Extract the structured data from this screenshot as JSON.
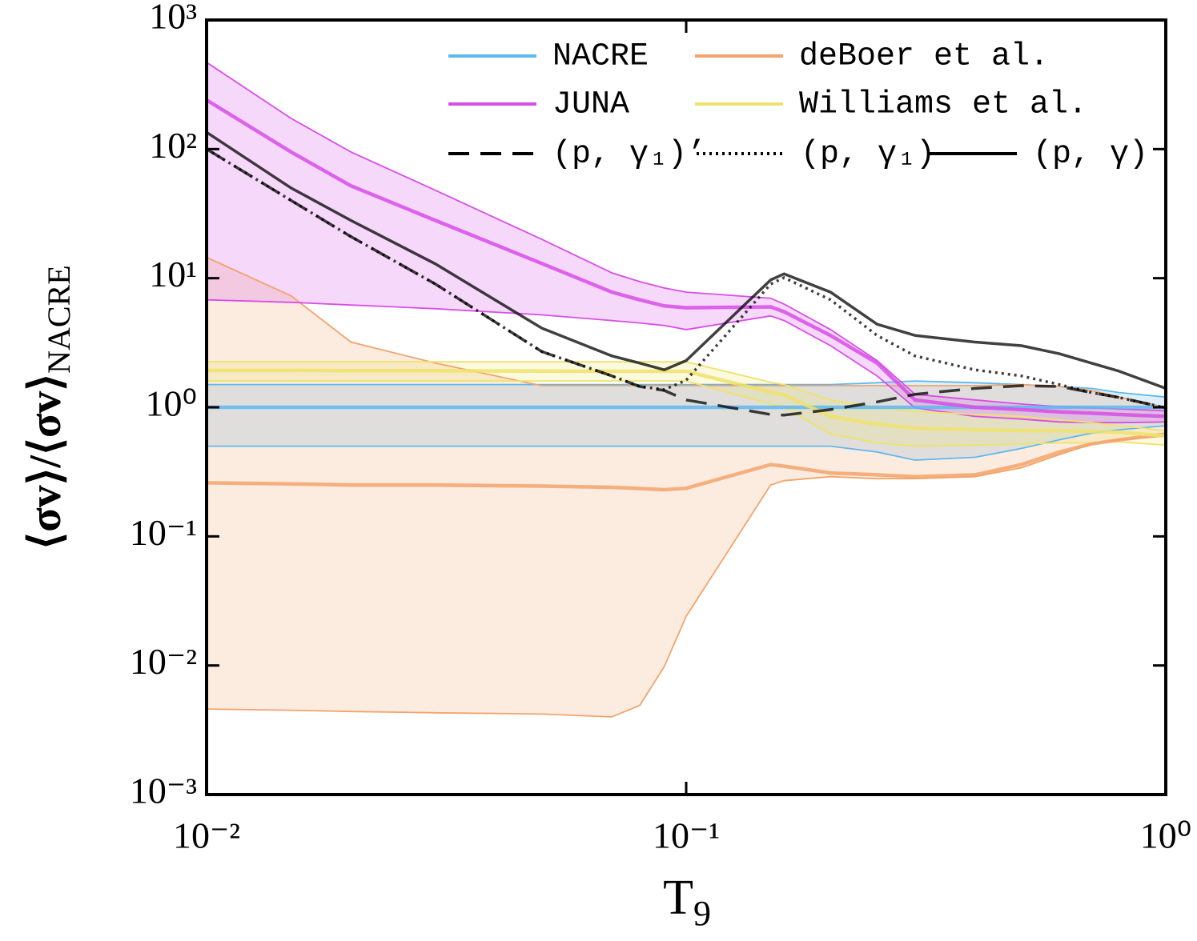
{
  "chart_data": {
    "type": "line",
    "x_label": {
      "text": "T",
      "subscript": "9"
    },
    "y_label": {
      "text": "⟨σv⟩/⟨σv⟩",
      "subscript": "NACRE"
    },
    "log_x": true,
    "log_y": true,
    "xlim": [
      0.01,
      1
    ],
    "ylim": [
      0.001,
      1000
    ],
    "xticks": [
      {
        "value": 0.01,
        "label": "10⁻²"
      },
      {
        "value": 0.1,
        "label": "10⁻¹"
      },
      {
        "value": 1,
        "label": "10⁰"
      }
    ],
    "yticks": [
      {
        "value": 0.001,
        "label": "10⁻³"
      },
      {
        "value": 0.01,
        "label": "10⁻²"
      },
      {
        "value": 0.1,
        "label": "10⁻¹"
      },
      {
        "value": 1,
        "label": "10⁰"
      },
      {
        "value": 10,
        "label": "10¹"
      },
      {
        "value": 100,
        "label": "10²"
      },
      {
        "value": 1000,
        "label": "10³"
      }
    ],
    "legend": "upper right",
    "x": [
      0.01,
      0.015,
      0.02,
      0.03,
      0.05,
      0.07,
      0.08,
      0.09,
      0.1,
      0.15,
      0.16,
      0.2,
      0.25,
      0.3,
      0.4,
      0.5,
      0.6,
      0.7,
      0.8,
      1.0
    ],
    "series": [
      {
        "name": "NACRE",
        "color": "#5fb8ee",
        "style": "solid",
        "values": [
          1,
          1,
          1,
          1,
          1,
          1,
          1,
          1,
          1,
          1,
          1,
          1,
          1,
          1,
          1,
          1,
          1,
          1,
          1,
          1
        ],
        "high": [
          1.5,
          1.5,
          1.5,
          1.5,
          1.5,
          1.5,
          1.5,
          1.5,
          1.5,
          1.5,
          1.5,
          1.5,
          1.55,
          1.6,
          1.55,
          1.5,
          1.45,
          1.4,
          1.3,
          1.2
        ],
        "low": [
          0.5,
          0.5,
          0.5,
          0.5,
          0.5,
          0.5,
          0.5,
          0.5,
          0.5,
          0.5,
          0.5,
          0.5,
          0.45,
          0.39,
          0.41,
          0.48,
          0.56,
          0.63,
          0.67,
          0.72
        ]
      },
      {
        "name": "deBoer et al.",
        "color": "#f2a46c",
        "style": "solid",
        "values": [
          0.26,
          0.255,
          0.25,
          0.25,
          0.245,
          0.24,
          0.235,
          0.23,
          0.236,
          0.36,
          0.35,
          0.31,
          0.3,
          0.29,
          0.3,
          0.36,
          0.45,
          0.52,
          0.56,
          0.62
        ],
        "high": [
          14.5,
          7.3,
          3.2,
          2.2,
          1.47,
          1.47,
          1.47,
          1.47,
          1.47,
          1.47,
          1.47,
          1.47,
          1.47,
          1.47,
          1.47,
          1.5,
          1.45,
          1.35,
          1.2,
          1.0
        ],
        "low": [
          0.0046,
          0.0045,
          0.0044,
          0.0043,
          0.0042,
          0.004,
          0.0049,
          0.0098,
          0.024,
          0.25,
          0.27,
          0.29,
          0.28,
          0.28,
          0.29,
          0.34,
          0.43,
          0.52,
          0.56,
          0.6
        ]
      },
      {
        "name": "JUNA",
        "color": "#d84ee8",
        "style": "solid",
        "values": [
          240,
          95,
          52,
          28,
          13,
          7.8,
          6.8,
          6.1,
          5.9,
          6.0,
          5.5,
          3.6,
          2.2,
          1.14,
          1.0,
          0.96,
          0.92,
          0.9,
          0.88,
          0.85
        ],
        "high": [
          470,
          173,
          95,
          48,
          20,
          11,
          9.4,
          8.4,
          7.8,
          7.0,
          6.3,
          4.0,
          2.3,
          1.26,
          1.14,
          1.06,
          1.01,
          0.99,
          0.97,
          0.94
        ],
        "low": [
          6.8,
          6.5,
          6.2,
          5.8,
          5.2,
          4.7,
          4.5,
          4.3,
          4.0,
          5.1,
          4.7,
          3.0,
          1.75,
          0.99,
          0.85,
          0.81,
          0.77,
          0.76,
          0.76,
          0.77
        ]
      },
      {
        "name": "Williams et al.",
        "color": "#eee36a",
        "style": "solid",
        "values": [
          1.93,
          1.93,
          1.92,
          1.92,
          1.91,
          1.9,
          1.9,
          1.9,
          1.9,
          1.31,
          1.25,
          0.85,
          0.74,
          0.69,
          0.67,
          0.66,
          0.66,
          0.65,
          0.64,
          0.6
        ],
        "high": [
          2.25,
          2.25,
          2.25,
          2.25,
          2.25,
          2.25,
          2.25,
          2.25,
          2.25,
          1.56,
          1.5,
          1.14,
          1.0,
          0.93,
          0.88,
          0.85,
          0.8,
          0.76,
          0.72,
          0.66
        ],
        "low": [
          1.6,
          1.6,
          1.6,
          1.6,
          1.6,
          1.6,
          1.6,
          1.6,
          1.6,
          1.06,
          1.0,
          0.62,
          0.53,
          0.5,
          0.51,
          0.52,
          0.53,
          0.53,
          0.54,
          0.51
        ]
      },
      {
        "name": "(p, γ₁)’",
        "color": "#000000",
        "style": "dashed",
        "values": [
          100,
          40,
          21,
          9.0,
          2.7,
          1.75,
          1.45,
          1.35,
          1.14,
          0.88,
          0.87,
          0.96,
          1.1,
          1.26,
          1.4,
          1.47,
          1.45,
          1.3,
          1.19,
          0.99
        ]
      },
      {
        "name": "(p, γ₁)",
        "color": "#000000",
        "style": "dotted",
        "values": [
          100,
          40,
          21,
          9.0,
          2.7,
          1.75,
          1.45,
          1.37,
          1.62,
          9.0,
          10.1,
          6.8,
          3.6,
          2.5,
          1.95,
          1.75,
          1.5,
          1.3,
          1.19,
          0.99
        ]
      },
      {
        "name": "(p, γ)",
        "color": "#000000",
        "style": "solid",
        "values": [
          135,
          50,
          28,
          12.9,
          4.1,
          2.5,
          2.2,
          1.95,
          2.3,
          9.7,
          10.8,
          7.8,
          4.4,
          3.6,
          3.2,
          3.0,
          2.6,
          2.2,
          1.9,
          1.4
        ]
      }
    ]
  }
}
